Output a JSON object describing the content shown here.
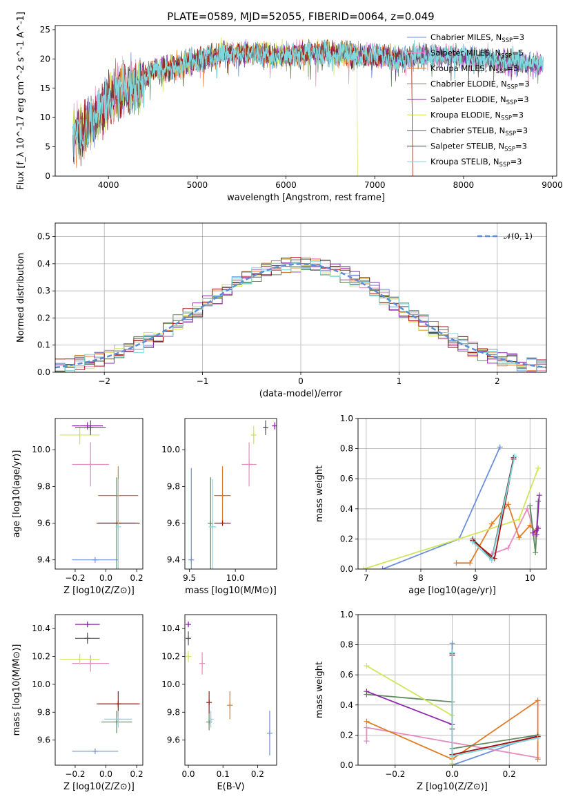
{
  "figure": {
    "title": "PLATE=0589, MJD=52055, FIBERID=0064, z=0.049"
  },
  "colors": {
    "Chabrier MILES": "#6a8fdd",
    "Salpeter MILES": "#e58bbf",
    "Kroupa MILES": "#e07b26",
    "Chabrier ELODIE": "#5e8a5e",
    "Salpeter ELODIE": "#8e2aaa",
    "Kroupa ELODIE": "#cfe65a",
    "Chabrier STELIB": "#555555",
    "Salpeter STELIB": "#aa1111",
    "Kroupa STELIB": "#7ed8dd"
  },
  "chart_data": [
    {
      "id": "spectrum",
      "type": "line",
      "title": "PLATE=0589, MJD=52055, FIBERID=0064, z=0.049",
      "xlabel": "wavelength [Angstrom, rest frame]",
      "ylabel": "Flux [f_λ 10^-17 erg cm^-2 s^-1 A^-1]",
      "xlim": [
        3400,
        9050
      ],
      "ylim": [
        0,
        25.7
      ],
      "xticks": [
        "4000",
        "5000",
        "6000",
        "7000",
        "8000",
        "9000"
      ],
      "yticks": [
        "0",
        "5",
        "10",
        "15",
        "20",
        "25"
      ],
      "grid": false,
      "legend_position": "top-right",
      "legend": [
        {
          "name": "Chabrier MILES",
          "sub": "SSP",
          "n": "3"
        },
        {
          "name": "Salpeter MILES",
          "sub": "SSP",
          "n": "5"
        },
        {
          "name": "Kroupa MILES",
          "sub": "SSP",
          "n": "5"
        },
        {
          "name": "Chabrier ELODIE",
          "sub": "SSP",
          "n": "3"
        },
        {
          "name": "Salpeter ELODIE",
          "sub": "SSP",
          "n": "3"
        },
        {
          "name": "Kroupa ELODIE",
          "sub": "SSP",
          "n": "3"
        },
        {
          "name": "Chabrier STELIB",
          "sub": "SSP",
          "n": "3"
        },
        {
          "name": "Salpeter STELIB",
          "sub": "SSP",
          "n": "3"
        },
        {
          "name": "Kroupa STELIB",
          "sub": "SSP",
          "n": "3"
        }
      ],
      "spectrum_profile": {
        "x": [
          3600,
          3700,
          3800,
          3900,
          4000,
          4100,
          4200,
          4300,
          4400,
          4500,
          4700,
          4900,
          5100,
          5300,
          5500,
          5700,
          5900,
          6100,
          6300,
          6500,
          6700,
          6900,
          7100,
          7300,
          7500,
          7700,
          7900,
          8100,
          8300,
          8500,
          8700,
          8900
        ],
        "y": [
          7,
          8,
          9,
          11,
          13.5,
          14,
          15,
          15.5,
          16.5,
          18,
          18.5,
          19.5,
          20,
          21,
          21,
          21,
          20.5,
          21,
          21,
          21,
          20.8,
          20.6,
          20.4,
          20,
          20.7,
          20.6,
          20.5,
          20.2,
          20.0,
          19.5,
          19.2,
          19.2
        ]
      }
    },
    {
      "id": "residuals",
      "type": "line",
      "xlabel": "(data-model)/error",
      "ylabel": "Normed distribution",
      "xlim": [
        -2.5,
        2.5
      ],
      "ylim": [
        0,
        0.55
      ],
      "xticks": [
        "−2",
        "−1",
        "0",
        "1",
        "2"
      ],
      "yticks": [
        "0.0",
        "0.1",
        "0.2",
        "0.3",
        "0.4",
        "0.5"
      ],
      "grid": true,
      "legend": [
        {
          "name": "𝒩(0, 1)",
          "style": "dashed"
        }
      ],
      "legend_position": "top-right",
      "bin_width": 0.1,
      "bin_start": -2.5,
      "hist_profile_scale": 1.0
    },
    {
      "id": "age-vs-Z",
      "type": "scatter",
      "xlabel": "Z [log10(Z/Z⊙)]",
      "ylabel": "age  [log10(age/yr)]",
      "xlim": [
        -0.33,
        0.24
      ],
      "ylim": [
        9.35,
        10.17
      ],
      "xticks": [
        "−0.2",
        "0.0",
        "0.2"
      ],
      "yticks": [
        "9.4",
        "9.6",
        "9.8",
        "10.0"
      ],
      "grid": false,
      "points": [
        {
          "series": "Chabrier MILES",
          "x": -0.07,
          "xerr": 0.15,
          "y": 9.4,
          "yerr": 0.0
        },
        {
          "series": "Salpeter MILES",
          "x": -0.1,
          "xerr": 0.12,
          "y": 9.92,
          "yerr": 0.12
        },
        {
          "series": "Kroupa MILES",
          "x": 0.08,
          "xerr": 0.13,
          "y": 9.75,
          "yerr": 0.16
        },
        {
          "series": "Chabrier ELODIE",
          "x": 0.07,
          "xerr": 0.12,
          "y": 9.6,
          "yerr": 0.25
        },
        {
          "series": "Salpeter ELODIE",
          "x": -0.12,
          "xerr": 0.1,
          "y": 10.13,
          "yerr": 0.02
        },
        {
          "series": "Kroupa ELODIE",
          "x": -0.17,
          "xerr": 0.13,
          "y": 10.08,
          "yerr": 0.05
        },
        {
          "series": "Chabrier STELIB",
          "x": -0.1,
          "xerr": 0.1,
          "y": 10.12,
          "yerr": 0.04
        },
        {
          "series": "Salpeter STELIB",
          "x": 0.08,
          "xerr": 0.14,
          "y": 9.6,
          "yerr": 0.0
        },
        {
          "series": "Kroupa STELIB",
          "x": 0.08,
          "xerr": 0.0,
          "y": 9.58,
          "yerr": 0.26
        }
      ]
    },
    {
      "id": "age-vs-mass",
      "type": "scatter",
      "xlabel": "mass [log10(M/M⊙)]",
      "ylabel": "",
      "xlim": [
        9.45,
        10.45
      ],
      "ylim": [
        9.35,
        10.17
      ],
      "xticks": [
        "9.5",
        "10.0"
      ],
      "yticks": [
        "9.4",
        "9.6",
        "9.8",
        "10.0"
      ],
      "grid": false,
      "points": [
        {
          "series": "Chabrier MILES",
          "x": 9.52,
          "xerr": 0.01,
          "y": 9.4,
          "yerr": 0.5
        },
        {
          "series": "Salpeter MILES",
          "x": 10.15,
          "xerr": 0.08,
          "y": 9.92,
          "yerr": 0.12
        },
        {
          "series": "Kroupa MILES",
          "x": 9.86,
          "xerr": 0.09,
          "y": 9.75,
          "yerr": 0.16
        },
        {
          "series": "Chabrier ELODIE",
          "x": 9.73,
          "xerr": 0.02,
          "y": 9.6,
          "yerr": 0.25
        },
        {
          "series": "Salpeter ELODIE",
          "x": 10.43,
          "xerr": 0.01,
          "y": 10.13,
          "yerr": 0.02
        },
        {
          "series": "Kroupa ELODIE",
          "x": 10.2,
          "xerr": 0.03,
          "y": 10.08,
          "yerr": 0.05
        },
        {
          "series": "Chabrier STELIB",
          "x": 10.33,
          "xerr": 0.02,
          "y": 10.12,
          "yerr": 0.04
        },
        {
          "series": "Salpeter STELIB",
          "x": 9.86,
          "xerr": 0.09,
          "y": 9.6,
          "yerr": 0.0
        },
        {
          "series": "Kroupa STELIB",
          "x": 9.75,
          "xerr": 0.04,
          "y": 9.58,
          "yerr": 0.26
        }
      ]
    },
    {
      "id": "weight-vs-age",
      "type": "line",
      "xlabel": "age  [log10(age/yr)]",
      "ylabel": "mass weight",
      "xlim": [
        6.85,
        10.3
      ],
      "ylim": [
        0.0,
        1.0
      ],
      "xticks": [
        "7",
        "8",
        "9",
        "10"
      ],
      "yticks": [
        "0.0",
        "0.2",
        "0.4",
        "0.6",
        "0.8",
        "1.0"
      ],
      "grid": true,
      "series": [
        {
          "name": "Chabrier MILES",
          "x": [
            7.3,
            8.7,
            9.45
          ],
          "y": [
            0.0,
            0.2,
            0.81
          ]
        },
        {
          "name": "Salpeter MILES",
          "x": [
            9.3,
            9.6,
            9.95,
            10.1
          ],
          "y": [
            0.1,
            0.14,
            0.4,
            0.22
          ]
        },
        {
          "name": "Kroupa MILES",
          "x": [
            8.65,
            8.9,
            9.3,
            9.6,
            9.8,
            10.0,
            10.1
          ],
          "y": [
            0.04,
            0.04,
            0.3,
            0.43,
            0.21,
            0.29,
            0.25
          ]
        },
        {
          "name": "Chabrier ELODIE",
          "x": [
            10.0,
            10.1,
            10.15
          ],
          "y": [
            0.42,
            0.11,
            0.45
          ]
        },
        {
          "name": "Salpeter ELODIE",
          "x": [
            10.05,
            10.15,
            10.12,
            10.17
          ],
          "y": [
            0.24,
            0.27,
            0.23,
            0.49
          ]
        },
        {
          "name": "Kroupa ELODIE",
          "x": [
            6.95,
            8.7,
            9.8,
            10.15
          ],
          "y": [
            0.0,
            0.2,
            0.33,
            0.67
          ]
        },
        {
          "name": "Chabrier STELIB",
          "x": [
            8.95,
            9.3,
            9.7
          ],
          "y": [
            0.2,
            0.07,
            0.74
          ]
        },
        {
          "name": "Salpeter STELIB",
          "x": [
            8.95,
            9.35,
            9.7
          ],
          "y": [
            0.19,
            0.07,
            0.73
          ]
        },
        {
          "name": "Kroupa STELIB",
          "x": [
            8.95,
            9.3,
            9.72
          ],
          "y": [
            0.18,
            0.06,
            0.75
          ]
        }
      ]
    },
    {
      "id": "mass-vs-Z",
      "type": "scatter",
      "xlabel": "Z [log10(Z/Z⊙)]",
      "ylabel": "mass [log10(M/M⊙)]",
      "xlim": [
        -0.33,
        0.24
      ],
      "ylim": [
        9.42,
        10.5
      ],
      "xticks": [
        "−0.2",
        "0.0",
        "0.2"
      ],
      "yticks": [
        "9.6",
        "9.8",
        "10.0",
        "10.2",
        "10.4"
      ],
      "grid": false,
      "points": [
        {
          "series": "Chabrier MILES",
          "x": -0.07,
          "xerr": 0.15,
          "y": 9.52,
          "yerr": 0.0
        },
        {
          "series": "Salpeter MILES",
          "x": -0.1,
          "xerr": 0.12,
          "y": 10.15,
          "yerr": 0.06
        },
        {
          "series": "Kroupa MILES",
          "x": 0.08,
          "xerr": 0.13,
          "y": 9.86,
          "yerr": 0.0
        },
        {
          "series": "Chabrier ELODIE",
          "x": 0.07,
          "xerr": 0.1,
          "y": 9.73,
          "yerr": 0.08
        },
        {
          "series": "Salpeter ELODIE",
          "x": -0.12,
          "xerr": 0.08,
          "y": 10.43,
          "yerr": 0.02
        },
        {
          "series": "Kroupa ELODIE",
          "x": -0.17,
          "xerr": 0.13,
          "y": 10.18,
          "yerr": 0.04
        },
        {
          "series": "Chabrier STELIB",
          "x": -0.12,
          "xerr": 0.08,
          "y": 10.33,
          "yerr": 0.04
        },
        {
          "series": "Salpeter STELIB",
          "x": 0.08,
          "xerr": 0.14,
          "y": 9.86,
          "yerr": 0.09
        },
        {
          "series": "Kroupa STELIB",
          "x": 0.08,
          "xerr": 0.09,
          "y": 9.75,
          "yerr": 0.06
        }
      ]
    },
    {
      "id": "mass-vs-ebv",
      "type": "scatter",
      "xlabel": "E(B-V)",
      "ylabel": "",
      "xlim": [
        -0.01,
        0.255
      ],
      "ylim": [
        9.42,
        10.5
      ],
      "xticks": [
        "0.0",
        "0.1",
        "0.2"
      ],
      "yticks": [
        "9.6",
        "9.8",
        "10.0",
        "10.2",
        "10.4"
      ],
      "grid": false,
      "points": [
        {
          "series": "Chabrier MILES",
          "x": 0.235,
          "xerr": 0.0,
          "y": 9.65,
          "yerr": 0.16
        },
        {
          "series": "Salpeter MILES",
          "x": 0.04,
          "xerr": 0.0,
          "y": 10.15,
          "yerr": 0.08
        },
        {
          "series": "Kroupa MILES",
          "x": 0.12,
          "xerr": 0.0,
          "y": 9.85,
          "yerr": 0.1
        },
        {
          "series": "Chabrier ELODIE",
          "x": 0.06,
          "xerr": 0.0,
          "y": 9.73,
          "yerr": 0.06
        },
        {
          "series": "Salpeter ELODIE",
          "x": 0.0,
          "xerr": 0.0,
          "y": 10.43,
          "yerr": 0.02
        },
        {
          "series": "Kroupa ELODIE",
          "x": 0.0,
          "xerr": 0.0,
          "y": 10.2,
          "yerr": 0.04
        },
        {
          "series": "Chabrier STELIB",
          "x": 0.0,
          "xerr": 0.0,
          "y": 10.33,
          "yerr": 0.05
        },
        {
          "series": "Salpeter STELIB",
          "x": 0.06,
          "xerr": 0.0,
          "y": 9.87,
          "yerr": 0.08
        },
        {
          "series": "Kroupa STELIB",
          "x": 0.065,
          "xerr": 0.0,
          "y": 9.75,
          "yerr": 0.06
        }
      ]
    },
    {
      "id": "weight-vs-Z",
      "type": "line",
      "xlabel": "Z [log10(Z/Z⊙)]",
      "ylabel": "mass weight",
      "xlim": [
        -0.33,
        0.33
      ],
      "ylim": [
        0.0,
        1.0
      ],
      "xticks": [
        "−0.2",
        "0.0",
        "0.2"
      ],
      "yticks": [
        "0.0",
        "0.2",
        "0.4",
        "0.6",
        "0.8",
        "1.0"
      ],
      "grid": true,
      "series": [
        {
          "name": "Chabrier MILES",
          "x": [
            0.0,
            0.0,
            0.3
          ],
          "y": [
            0.81,
            0.0,
            0.2
          ]
        },
        {
          "name": "Salpeter MILES",
          "x": [
            -0.3,
            -0.3,
            0.3
          ],
          "y": [
            0.16,
            0.25,
            0.05
          ]
        },
        {
          "name": "Kroupa MILES",
          "x": [
            -0.3,
            0.0,
            0.3,
            0.3
          ],
          "y": [
            0.29,
            0.04,
            0.43,
            0.04
          ]
        },
        {
          "name": "Chabrier ELODIE",
          "x": [
            -0.3,
            0.0,
            0.0,
            0.3
          ],
          "y": [
            0.47,
            0.42,
            0.11,
            0.2
          ]
        },
        {
          "name": "Salpeter ELODIE",
          "x": [
            -0.3,
            0.0,
            0.0
          ],
          "y": [
            0.49,
            0.27,
            0.24
          ]
        },
        {
          "name": "Kroupa ELODIE",
          "x": [
            -0.3,
            0.0,
            0.0
          ],
          "y": [
            0.66,
            0.33,
            0.01
          ]
        },
        {
          "name": "Chabrier STELIB",
          "x": [
            0.0,
            0.0,
            0.3
          ],
          "y": [
            0.74,
            0.07,
            0.19
          ]
        },
        {
          "name": "Salpeter STELIB",
          "x": [
            0.0,
            0.0,
            0.3
          ],
          "y": [
            0.73,
            0.07,
            0.19
          ]
        },
        {
          "name": "Kroupa STELIB",
          "x": [
            0.0,
            0.0,
            0.3
          ],
          "y": [
            0.75,
            0.06,
            0.18
          ]
        }
      ]
    }
  ]
}
